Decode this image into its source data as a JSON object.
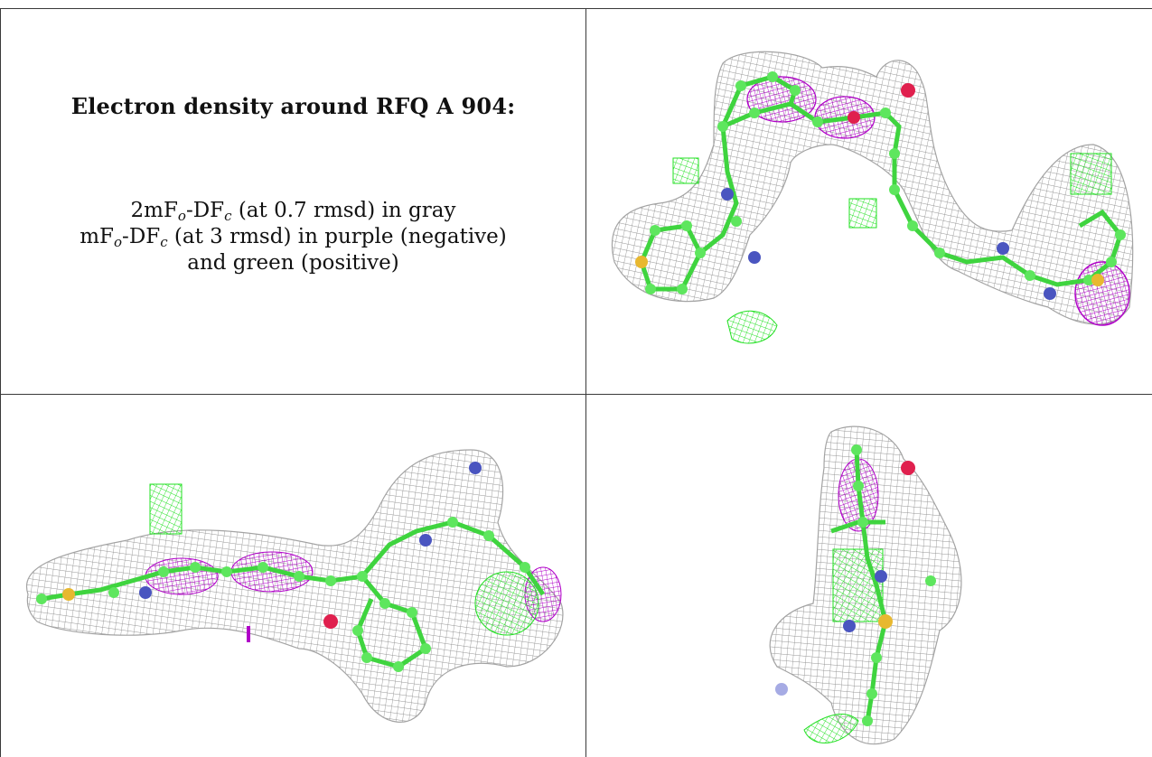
{
  "panel_text": {
    "title": "Electron density around RFQ A 904:",
    "line1": {
      "pre": "2mF",
      "sub1": "o",
      "mid": "-DF",
      "sub2": "c",
      "post": " (at 0.7 rmsd) in gray"
    },
    "line2": {
      "pre": "mF",
      "sub1": "o",
      "mid": "-DF",
      "sub2": "c",
      "post": " (at 3 rmsd) in purple (negative)"
    },
    "line3": "and green (positive)"
  },
  "colors": {
    "mesh_gray": "#8a8a8a",
    "negative_purple": "#b000c8",
    "positive_green": "#22e022",
    "atom_carbon": "#5ee65e",
    "atom_nitrogen": "#4a55c0",
    "atom_oxygen": "#e0204e",
    "atom_sulfur": "#e8b830",
    "border": "#3a3a3a"
  },
  "views": [
    {
      "id": "view-top-right",
      "label": "density-view-1"
    },
    {
      "id": "view-bottom-left",
      "label": "density-view-2"
    },
    {
      "id": "view-bottom-right",
      "label": "density-view-3"
    }
  ]
}
